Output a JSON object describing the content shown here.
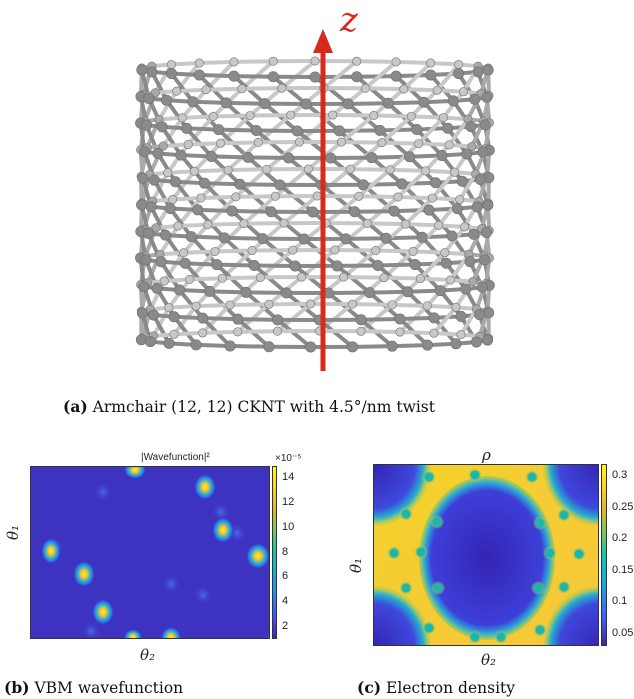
{
  "figure": {
    "panel_a": {
      "axis_label": "z",
      "caption_tag": "(a)",
      "caption_text": "Armchair (12, 12) CKNT with 4.5°/nm twist"
    },
    "panel_b": {
      "title": "|Wavefunction|²",
      "scale_note": "×10⁻⁵",
      "xlabel": "θ₂",
      "ylabel": "θ₁",
      "colorbar_ticks": [
        "14",
        "12",
        "10",
        "8",
        "6",
        "4",
        "2"
      ],
      "caption_tag": "(b)",
      "caption_text": "VBM wavefunction"
    },
    "panel_c": {
      "title": "ρ",
      "xlabel": "θ₂",
      "ylabel": "θ₁",
      "colorbar_ticks": [
        "0.3",
        "0.25",
        "0.2",
        "0.15",
        "0.1",
        "0.05"
      ],
      "caption_tag": "(c)",
      "caption_text": "Electron density"
    },
    "colors": {
      "arrow": "#d62a1a",
      "atom": "#8c8c8c",
      "parula_low": "#3d33c0",
      "parula_high": "#f9fb0e"
    }
  }
}
